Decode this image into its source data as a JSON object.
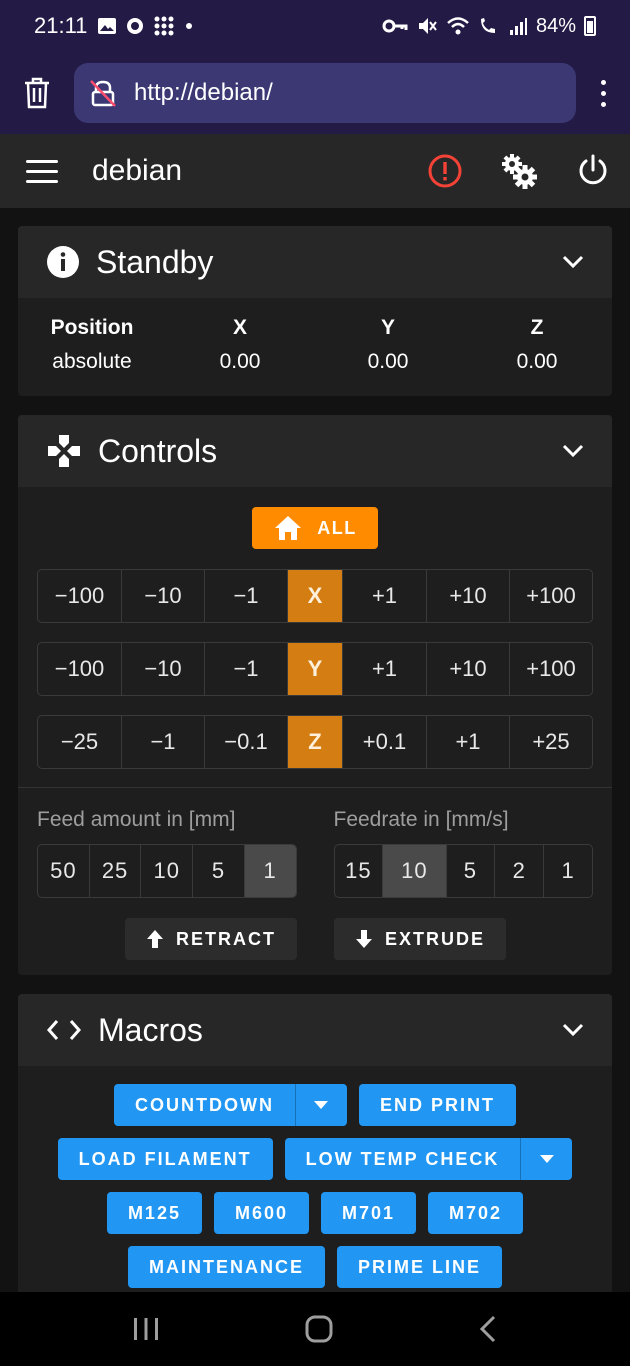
{
  "status_bar": {
    "time": "21:11",
    "battery": "84%",
    "icons_left": [
      "image-icon",
      "sync-icon",
      "grid-icon",
      "dot-icon"
    ],
    "icons_right": [
      "key-icon",
      "mute-icon",
      "wifi-icon",
      "wifi-call-icon",
      "signal-icon",
      "battery-icon"
    ]
  },
  "browser": {
    "url": "http://debian/",
    "left_icon": "trash-icon",
    "security_icon": "not-secure-icon",
    "menu_icon": "more-vert-icon"
  },
  "app_bar": {
    "title": "debian",
    "actions": [
      "alert-icon",
      "settings-icon",
      "power-icon"
    ],
    "colors": {
      "alert": "#f44336"
    }
  },
  "standby_card": {
    "title": "Standby",
    "icon": "info-icon",
    "columns": [
      {
        "header": "Position",
        "value": "absolute"
      },
      {
        "header": "X",
        "value": "0.00"
      },
      {
        "header": "Y",
        "value": "0.00"
      },
      {
        "header": "Z",
        "value": "0.00"
      }
    ]
  },
  "controls_card": {
    "title": "Controls",
    "icon": "gamepad-icon",
    "home_all_label": "ALL",
    "jog_rows": [
      {
        "axis": "X",
        "minus": [
          "−100",
          "−10",
          "−1"
        ],
        "plus": [
          "+1",
          "+10",
          "+100"
        ]
      },
      {
        "axis": "Y",
        "minus": [
          "−100",
          "−10",
          "−1"
        ],
        "plus": [
          "+1",
          "+10",
          "+100"
        ]
      },
      {
        "axis": "Z",
        "minus": [
          "−25",
          "−1",
          "−0.1"
        ],
        "plus": [
          "+0.1",
          "+1",
          "+25"
        ]
      }
    ],
    "feed_amount": {
      "label": "Feed amount in [mm]",
      "options": [
        "50",
        "25",
        "10",
        "5",
        "1"
      ],
      "selected": "1"
    },
    "feedrate": {
      "label": "Feedrate in [mm/s]",
      "options": [
        "15",
        "10",
        "5",
        "2",
        "1"
      ],
      "selected": "10"
    },
    "retract_label": "RETRACT",
    "extrude_label": "EXTRUDE",
    "colors": {
      "home": "#ff8c00",
      "axis": "#d37d12"
    }
  },
  "macros_card": {
    "title": "Macros",
    "icon": "code-icon",
    "rows": [
      [
        {
          "label": "COUNTDOWN",
          "dropdown": true
        },
        {
          "label": "END PRINT",
          "dropdown": false
        }
      ],
      [
        {
          "label": "LOAD FILAMENT",
          "dropdown": false
        },
        {
          "label": "LOW TEMP CHECK",
          "dropdown": true
        }
      ],
      [
        {
          "label": "M125",
          "dropdown": false
        },
        {
          "label": "M600",
          "dropdown": false
        },
        {
          "label": "M701",
          "dropdown": false
        },
        {
          "label": "M702",
          "dropdown": false
        }
      ],
      [
        {
          "label": "MAINTENANCE",
          "dropdown": false
        },
        {
          "label": "PRIME LINE",
          "dropdown": false
        }
      ]
    ],
    "colors": {
      "button": "#2196f3"
    }
  },
  "nav_bar": {
    "items": [
      "recent-apps-icon",
      "home-icon",
      "back-icon"
    ]
  }
}
